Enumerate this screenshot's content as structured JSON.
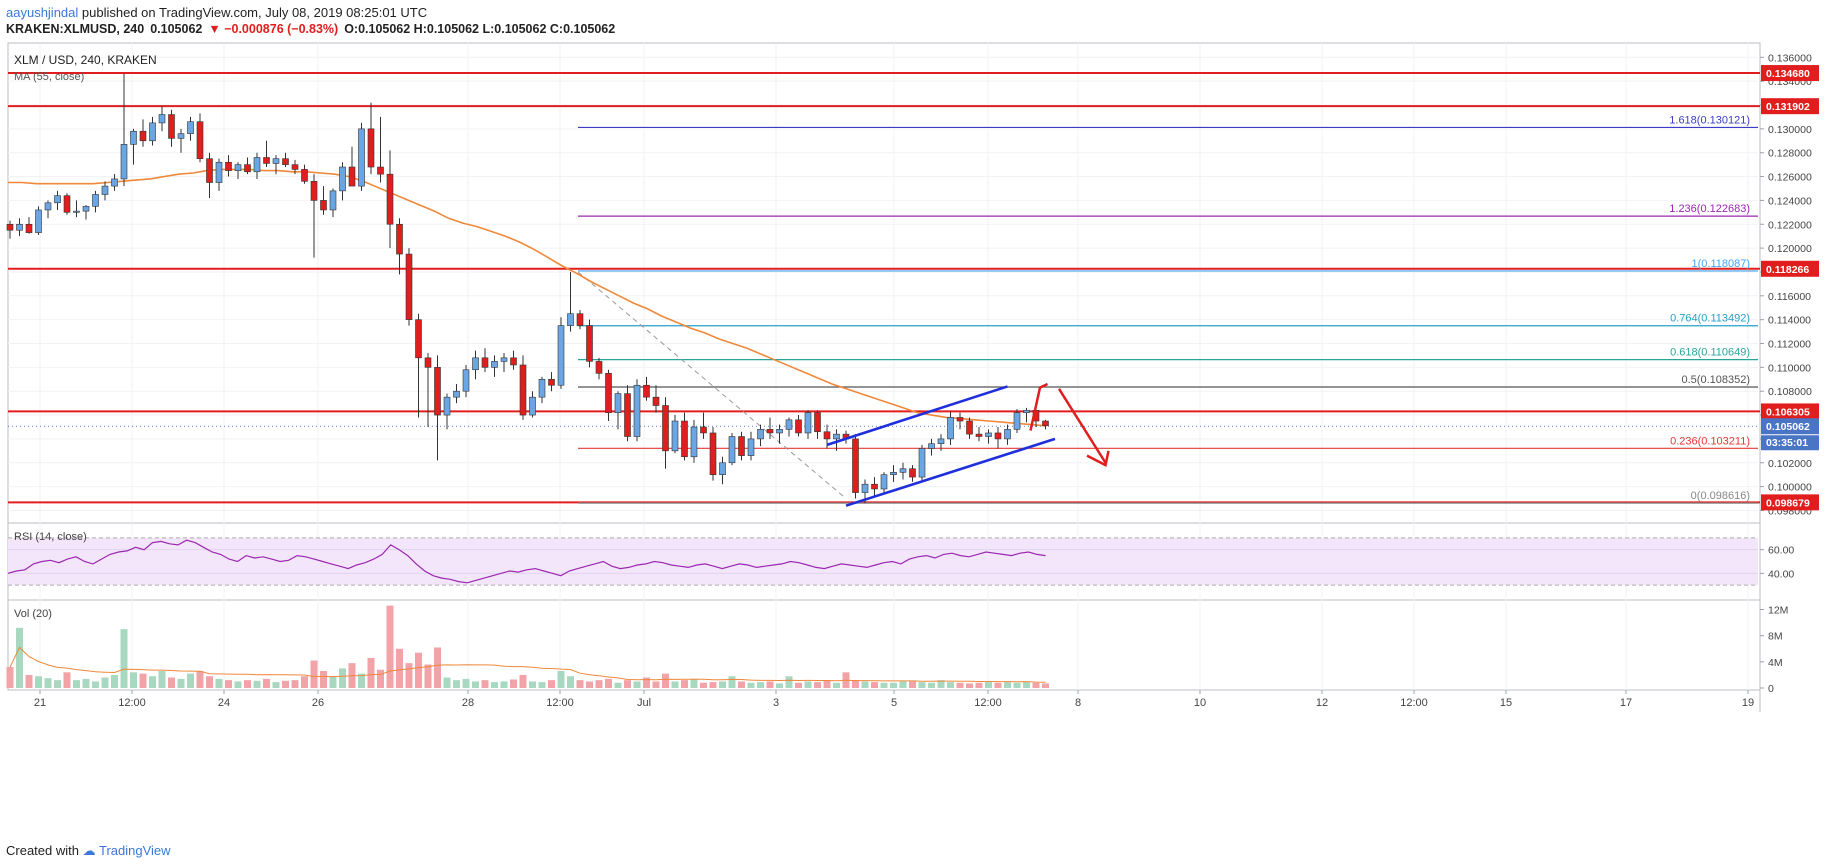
{
  "header": {
    "user": "aayushjindal",
    "published": "published on TradingView.com, July 08, 2019 08:25:01 UTC",
    "symbol": "KRAKEN:XLMUSD, 240",
    "last": "0.105062",
    "change": "▼ −0.000876 (−0.83%)",
    "ohlc": "O:0.105062 H:0.105062 L:0.105062 C:0.105062"
  },
  "footer": {
    "created": "Created with",
    "brand": "TradingView"
  },
  "chart_data": {
    "type": "candlestick",
    "title": "XLM / USD, 240, KRAKEN",
    "ma_label": "MA (55, close)",
    "x_ticks": [
      "21",
      "12:00",
      "24",
      "26",
      "28",
      "12:00",
      "Jul",
      "3",
      "5",
      "12:00",
      "8",
      "10",
      "12",
      "12:00",
      "15",
      "17",
      "19"
    ],
    "y_ticks": [
      "0.136000",
      "0.134000",
      "0.132000",
      "0.130000",
      "0.128000",
      "0.126000",
      "0.124000",
      "0.122000",
      "0.120000",
      "0.118000",
      "0.116000",
      "0.114000",
      "0.112000",
      "0.110000",
      "0.108000",
      "0.106000",
      "0.104000",
      "0.102000",
      "0.100000",
      "0.098000"
    ],
    "y_range": [
      0.0972,
      0.1372
    ],
    "horizontal_levels": [
      0.13468,
      0.131902,
      0.118266,
      0.106305,
      0.098679
    ],
    "horizontal_level_labels": [
      "0.134680",
      "0.131902",
      "0.118266",
      "0.106305",
      "0.098679"
    ],
    "last_price": "0.105062",
    "countdown": "03:35:01",
    "fibonacci": [
      {
        "label": "1.618(0.130121)",
        "value": 0.130121,
        "color": "#3c3cc8"
      },
      {
        "label": "1.236(0.122683)",
        "value": 0.122683,
        "color": "#9c27b0"
      },
      {
        "label": "1(0.118087)",
        "value": 0.118087,
        "color": "#42a5f5"
      },
      {
        "label": "0.764(0.113492)",
        "value": 0.113492,
        "color": "#26a0c8"
      },
      {
        "label": "0.618(0.110649)",
        "value": 0.110649,
        "color": "#26a69a"
      },
      {
        "label": "0.5(0.108352)",
        "value": 0.108352,
        "color": "#555555"
      },
      {
        "label": "0.236(0.103211)",
        "value": 0.103211,
        "color": "#e53935"
      },
      {
        "label": "0(0.098616)",
        "value": 0.098616,
        "color": "#888888"
      }
    ],
    "candles_ohlc": [
      [
        0.122,
        0.1223,
        0.1208,
        0.1215
      ],
      [
        0.1215,
        0.1225,
        0.121,
        0.122
      ],
      [
        0.122,
        0.1226,
        0.1212,
        0.1213
      ],
      [
        0.1213,
        0.1235,
        0.1211,
        0.1232
      ],
      [
        0.1232,
        0.124,
        0.1225,
        0.1238
      ],
      [
        0.1238,
        0.1248,
        0.1232,
        0.1244
      ],
      [
        0.1244,
        0.1246,
        0.1228,
        0.123
      ],
      [
        0.123,
        0.124,
        0.1226,
        0.1231
      ],
      [
        0.1231,
        0.1236,
        0.1224,
        0.1235
      ],
      [
        0.1235,
        0.1248,
        0.123,
        0.1245
      ],
      [
        0.1245,
        0.1256,
        0.124,
        0.1252
      ],
      [
        0.1252,
        0.1262,
        0.1248,
        0.1258
      ],
      [
        0.1258,
        0.1346,
        0.1252,
        0.1287
      ],
      [
        0.1287,
        0.13,
        0.127,
        0.1298
      ],
      [
        0.1298,
        0.1308,
        0.1285,
        0.129
      ],
      [
        0.129,
        0.131,
        0.1286,
        0.1305
      ],
      [
        0.1305,
        0.1319,
        0.1298,
        0.1312
      ],
      [
        0.1312,
        0.1316,
        0.1285,
        0.1292
      ],
      [
        0.1292,
        0.13,
        0.128,
        0.1296
      ],
      [
        0.1296,
        0.131,
        0.129,
        0.1306
      ],
      [
        0.1306,
        0.1313,
        0.1272,
        0.1275
      ],
      [
        0.1275,
        0.128,
        0.1242,
        0.1255
      ],
      [
        0.1255,
        0.1275,
        0.1248,
        0.1272
      ],
      [
        0.1272,
        0.1278,
        0.126,
        0.1265
      ],
      [
        0.1265,
        0.1272,
        0.1258,
        0.127
      ],
      [
        0.127,
        0.1276,
        0.1262,
        0.1264
      ],
      [
        0.1264,
        0.128,
        0.1258,
        0.1276
      ],
      [
        0.1276,
        0.129,
        0.1268,
        0.1271
      ],
      [
        0.1271,
        0.1278,
        0.1262,
        0.1275
      ],
      [
        0.1275,
        0.128,
        0.1268,
        0.127
      ],
      [
        0.127,
        0.1274,
        0.1262,
        0.1266
      ],
      [
        0.1266,
        0.127,
        0.1254,
        0.1256
      ],
      [
        0.1256,
        0.1262,
        0.1192,
        0.124
      ],
      [
        0.124,
        0.1252,
        0.1228,
        0.1232
      ],
      [
        0.1232,
        0.125,
        0.1226,
        0.1248
      ],
      [
        0.1248,
        0.1272,
        0.124,
        0.1268
      ],
      [
        0.1268,
        0.1285,
        0.1262,
        0.1252
      ],
      [
        0.1252,
        0.1305,
        0.1248,
        0.13
      ],
      [
        0.13,
        0.1322,
        0.1262,
        0.1268
      ],
      [
        0.1268,
        0.131,
        0.1255,
        0.1262
      ],
      [
        0.1262,
        0.1282,
        0.12,
        0.122
      ],
      [
        0.122,
        0.1225,
        0.1178,
        0.1195
      ],
      [
        0.1195,
        0.12,
        0.1135,
        0.114
      ],
      [
        0.114,
        0.1145,
        0.1058,
        0.1108
      ],
      [
        0.1108,
        0.1112,
        0.105,
        0.11
      ],
      [
        0.11,
        0.111,
        0.1022,
        0.106
      ],
      [
        0.106,
        0.1078,
        0.1048,
        0.1075
      ],
      [
        0.1075,
        0.1086,
        0.107,
        0.108
      ],
      [
        0.108,
        0.1102,
        0.1075,
        0.1098
      ],
      [
        0.1098,
        0.1114,
        0.109,
        0.1108
      ],
      [
        0.1108,
        0.1116,
        0.1096,
        0.11
      ],
      [
        0.11,
        0.111,
        0.1092,
        0.1105
      ],
      [
        0.1105,
        0.1112,
        0.1096,
        0.1108
      ],
      [
        0.1108,
        0.1114,
        0.1098,
        0.1102
      ],
      [
        0.1102,
        0.111,
        0.1056,
        0.106
      ],
      [
        0.106,
        0.108,
        0.1058,
        0.1075
      ],
      [
        0.1075,
        0.1092,
        0.107,
        0.109
      ],
      [
        0.109,
        0.1096,
        0.108,
        0.1085
      ],
      [
        0.1085,
        0.1142,
        0.1082,
        0.1135
      ],
      [
        0.1135,
        0.118,
        0.113,
        0.1145
      ],
      [
        0.1145,
        0.1148,
        0.1132,
        0.1135
      ],
      [
        0.1135,
        0.114,
        0.11,
        0.1105
      ],
      [
        0.1105,
        0.1108,
        0.109,
        0.1095
      ],
      [
        0.1095,
        0.1098,
        0.1055,
        0.1062
      ],
      [
        0.1062,
        0.108,
        0.1048,
        0.1078
      ],
      [
        0.1078,
        0.1085,
        0.1038,
        0.1042
      ],
      [
        0.1042,
        0.109,
        0.1038,
        0.1085
      ],
      [
        0.1085,
        0.1092,
        0.1072,
        0.1075
      ],
      [
        0.1075,
        0.1085,
        0.1062,
        0.1068
      ],
      [
        0.1068,
        0.1075,
        0.1015,
        0.103
      ],
      [
        0.103,
        0.106,
        0.1028,
        0.1055
      ],
      [
        0.1055,
        0.1062,
        0.1022,
        0.1025
      ],
      [
        0.1025,
        0.1056,
        0.102,
        0.105
      ],
      [
        0.105,
        0.1062,
        0.104,
        0.1045
      ],
      [
        0.1045,
        0.105,
        0.1005,
        0.101
      ],
      [
        0.101,
        0.1025,
        0.1002,
        0.102
      ],
      [
        0.102,
        0.1045,
        0.1018,
        0.1042
      ],
      [
        0.1042,
        0.1046,
        0.1022,
        0.1026
      ],
      [
        0.1026,
        0.1046,
        0.1022,
        0.104
      ],
      [
        0.104,
        0.1052,
        0.1034,
        0.1048
      ],
      [
        0.1048,
        0.1058,
        0.104,
        0.1045
      ],
      [
        0.1045,
        0.1052,
        0.1036,
        0.1048
      ],
      [
        0.1048,
        0.1058,
        0.1042,
        0.1056
      ],
      [
        0.1056,
        0.106,
        0.1042,
        0.1045
      ],
      [
        0.1045,
        0.1064,
        0.104,
        0.1062
      ],
      [
        0.1062,
        0.1064,
        0.104,
        0.1046
      ],
      [
        0.1046,
        0.1052,
        0.1032,
        0.104
      ],
      [
        0.104,
        0.1048,
        0.103,
        0.1044
      ],
      [
        0.1044,
        0.1047,
        0.1036,
        0.104
      ],
      [
        0.104,
        0.1044,
        0.099,
        0.0995
      ],
      [
        0.0995,
        0.1006,
        0.0986,
        0.1002
      ],
      [
        0.1002,
        0.1008,
        0.0992,
        0.0998
      ],
      [
        0.0998,
        0.1012,
        0.0995,
        0.101
      ],
      [
        0.101,
        0.1018,
        0.1004,
        0.1012
      ],
      [
        0.1012,
        0.102,
        0.1006,
        0.1015
      ],
      [
        0.1015,
        0.1018,
        0.1004,
        0.1008
      ],
      [
        0.1008,
        0.1035,
        0.1005,
        0.1032
      ],
      [
        0.1032,
        0.104,
        0.1026,
        0.1036
      ],
      [
        0.1036,
        0.1044,
        0.103,
        0.104
      ],
      [
        0.104,
        0.1063,
        0.1035,
        0.1058
      ],
      [
        0.1058,
        0.1062,
        0.1048,
        0.1055
      ],
      [
        0.1055,
        0.1058,
        0.104,
        0.1044
      ],
      [
        0.1044,
        0.105,
        0.1038,
        0.1042
      ],
      [
        0.1042,
        0.1048,
        0.1036,
        0.1045
      ],
      [
        0.1045,
        0.105,
        0.1032,
        0.104
      ],
      [
        0.104,
        0.1052,
        0.1035,
        0.1048
      ],
      [
        0.1048,
        0.1065,
        0.1045,
        0.1062
      ],
      [
        0.1062,
        0.1066,
        0.1054,
        0.1064
      ],
      [
        0.1064,
        0.1065,
        0.105,
        0.1055
      ],
      [
        0.1055,
        0.1056,
        0.1048,
        0.1051
      ]
    ],
    "ma_55": [
      0.1255,
      0.1255,
      0.1254,
      0.1254,
      0.1254,
      0.1254,
      0.1254,
      0.1255,
      0.1256,
      0.1257,
      0.1258,
      0.126,
      0.1262,
      0.1263,
      0.1265,
      0.1266,
      0.1266,
      0.1266,
      0.1265,
      0.1265,
      0.1264,
      0.1264,
      0.1263,
      0.1262,
      0.126,
      0.1256,
      0.1251,
      0.1246,
      0.1241,
      0.1236,
      0.1231,
      0.1225,
      0.1221,
      0.1218,
      0.1214,
      0.121,
      0.1205,
      0.1199,
      0.1192,
      0.1185,
      0.1179,
      0.1172,
      0.1166,
      0.116,
      0.1154,
      0.1149,
      0.1143,
      0.1138,
      0.1133,
      0.1129,
      0.1124,
      0.112,
      0.1116,
      0.1111,
      0.1106,
      0.1101,
      0.1096,
      0.1091,
      0.1086,
      0.1082,
      0.1078,
      0.1074,
      0.107,
      0.1066,
      0.1062,
      0.106,
      0.1058,
      0.1057,
      0.1056,
      0.1055,
      0.1054,
      0.1053,
      0.1052,
      0.1051
    ],
    "rsi": {
      "label": "RSI (14, close)",
      "y_ticks": [
        "60.00",
        "40.00"
      ],
      "bands": [
        70,
        30
      ],
      "values": [
        40,
        42,
        43,
        48,
        50,
        51,
        49,
        52,
        54,
        50,
        48,
        52,
        56,
        58,
        59,
        62,
        60,
        66,
        67,
        65,
        64,
        68,
        66,
        62,
        58,
        56,
        52,
        50,
        55,
        53,
        54,
        52,
        50,
        51,
        55,
        54,
        52,
        50,
        48,
        46,
        44,
        47,
        49,
        52,
        56,
        64,
        60,
        55,
        48,
        42,
        38,
        36,
        35,
        33,
        32,
        34,
        36,
        38,
        40,
        42,
        41,
        43,
        44,
        42,
        40,
        38,
        42,
        44,
        46,
        48,
        50,
        46,
        44,
        45,
        47,
        48,
        50,
        49,
        47,
        46,
        45,
        47,
        48,
        46,
        44,
        46,
        48,
        47,
        45,
        46,
        47,
        48,
        50,
        49,
        47,
        45,
        44,
        46,
        48,
        47,
        46,
        45,
        47,
        49,
        50,
        48,
        52,
        54,
        55,
        53,
        56,
        57,
        55,
        54,
        56,
        58,
        57,
        56,
        55,
        57,
        58,
        56,
        55
      ],
      "range": [
        20,
        80
      ]
    },
    "volume": {
      "label": "Vol (20)",
      "y_ticks": [
        "12M",
        "8M",
        "4M",
        "0"
      ],
      "range": [
        0,
        13
      ]
    }
  }
}
